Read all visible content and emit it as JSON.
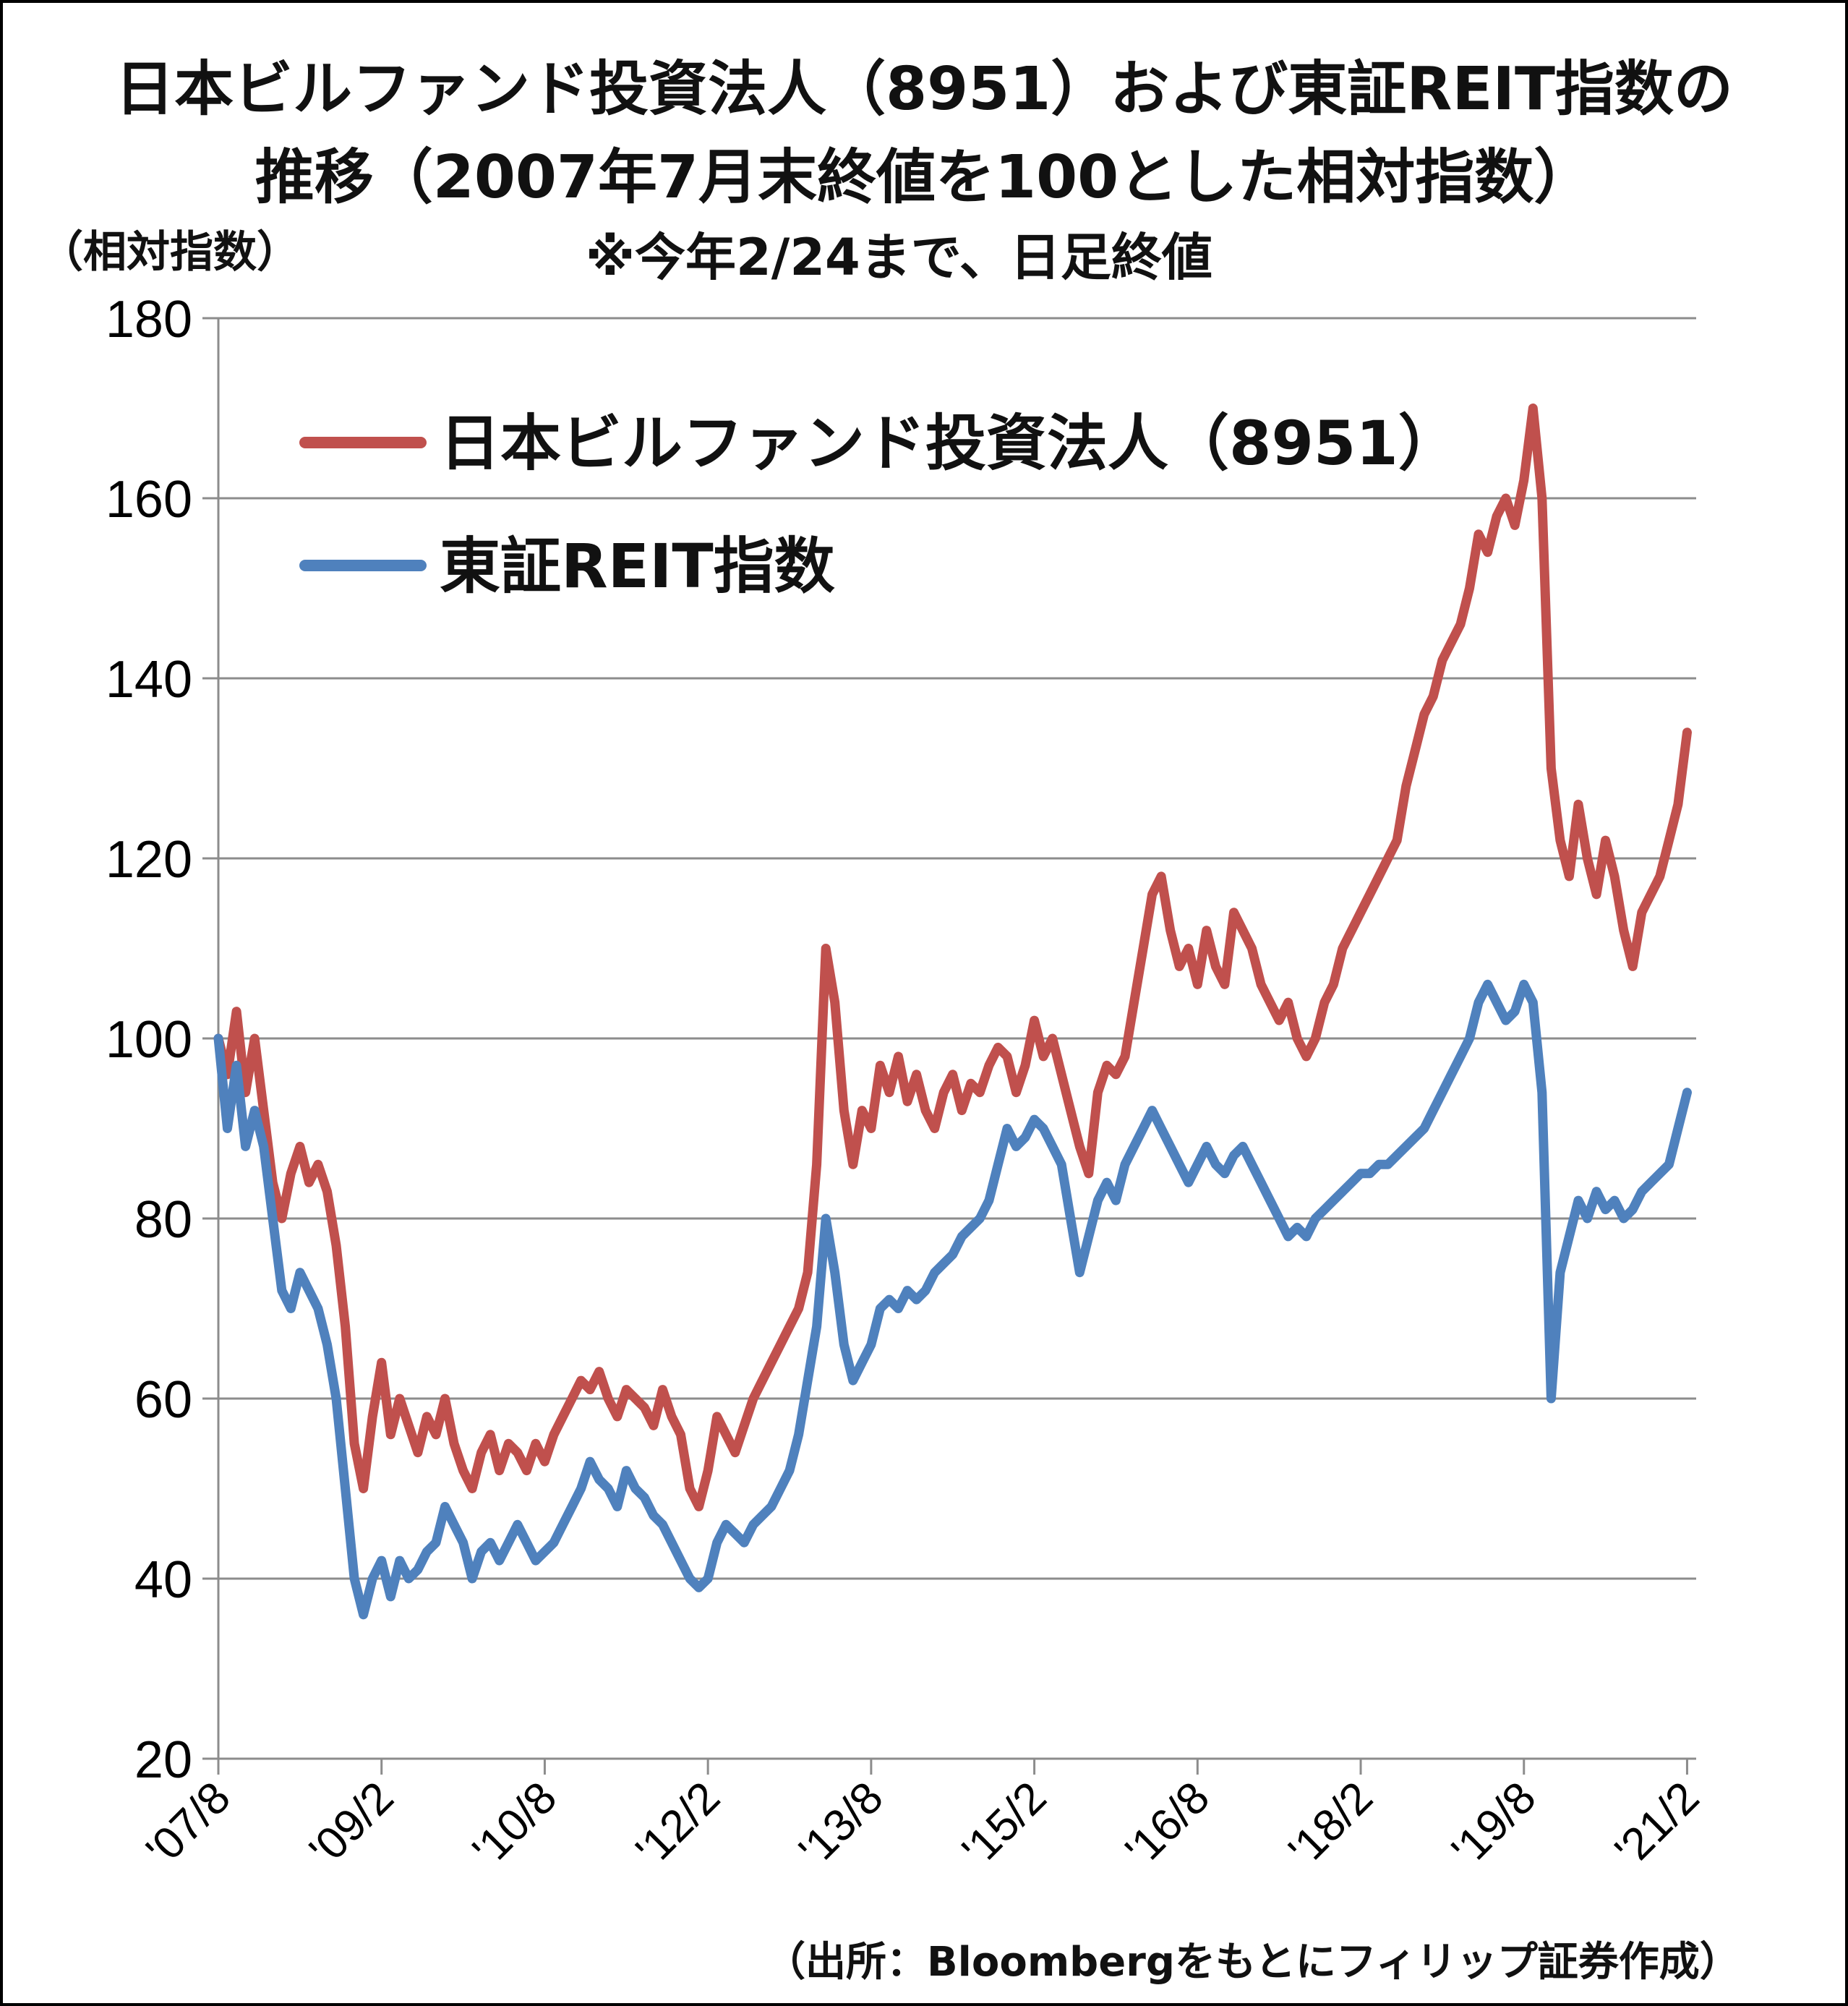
{
  "title_line1": "日本ビルファンド投資法人（8951）および東証REIT指数の",
  "title_line2": "推移（2007年7月末終値を100とした相対指数）",
  "note": "※今年2/24まで、日足終値",
  "y_unit": "（相対指数）",
  "source": "（出所：Bloombergをもとにフィリップ証券作成）",
  "chart_data": {
    "type": "line",
    "ylim": [
      20,
      180
    ],
    "yticks": [
      20,
      40,
      60,
      80,
      100,
      120,
      140,
      160,
      180
    ],
    "xlim": [
      0,
      163
    ],
    "xticks": [
      {
        "label": "'07/8",
        "x": 0
      },
      {
        "label": "'09/2",
        "x": 18
      },
      {
        "label": "'10/8",
        "x": 36
      },
      {
        "label": "'12/2",
        "x": 54
      },
      {
        "label": "'13/8",
        "x": 72
      },
      {
        "label": "'15/2",
        "x": 90
      },
      {
        "label": "'16/8",
        "x": 108
      },
      {
        "label": "'18/2",
        "x": 126
      },
      {
        "label": "'19/8",
        "x": 144
      },
      {
        "label": "'21/2",
        "x": 162
      }
    ],
    "grid": true,
    "legend_position": "top-left",
    "series": [
      {
        "name": "日本ビルファンド投資法人（8951）",
        "color": "#C0504D",
        "points": [
          [
            0,
            100
          ],
          [
            1,
            96
          ],
          [
            2,
            103
          ],
          [
            3,
            94
          ],
          [
            4,
            100
          ],
          [
            5,
            92
          ],
          [
            6,
            84
          ],
          [
            7,
            80
          ],
          [
            8,
            85
          ],
          [
            9,
            88
          ],
          [
            10,
            84
          ],
          [
            11,
            86
          ],
          [
            12,
            83
          ],
          [
            13,
            77
          ],
          [
            14,
            68
          ],
          [
            15,
            55
          ],
          [
            16,
            50
          ],
          [
            17,
            58
          ],
          [
            18,
            64
          ],
          [
            19,
            56
          ],
          [
            20,
            60
          ],
          [
            21,
            57
          ],
          [
            22,
            54
          ],
          [
            23,
            58
          ],
          [
            24,
            56
          ],
          [
            25,
            60
          ],
          [
            26,
            55
          ],
          [
            27,
            52
          ],
          [
            28,
            50
          ],
          [
            29,
            54
          ],
          [
            30,
            56
          ],
          [
            31,
            52
          ],
          [
            32,
            55
          ],
          [
            33,
            54
          ],
          [
            34,
            52
          ],
          [
            35,
            55
          ],
          [
            36,
            53
          ],
          [
            37,
            56
          ],
          [
            38,
            58
          ],
          [
            39,
            60
          ],
          [
            40,
            62
          ],
          [
            41,
            61
          ],
          [
            42,
            63
          ],
          [
            43,
            60
          ],
          [
            44,
            58
          ],
          [
            45,
            61
          ],
          [
            46,
            60
          ],
          [
            47,
            59
          ],
          [
            48,
            57
          ],
          [
            49,
            61
          ],
          [
            50,
            58
          ],
          [
            51,
            56
          ],
          [
            52,
            50
          ],
          [
            53,
            48
          ],
          [
            54,
            52
          ],
          [
            55,
            58
          ],
          [
            56,
            56
          ],
          [
            57,
            54
          ],
          [
            58,
            57
          ],
          [
            59,
            60
          ],
          [
            60,
            62
          ],
          [
            61,
            64
          ],
          [
            62,
            66
          ],
          [
            63,
            68
          ],
          [
            64,
            70
          ],
          [
            65,
            74
          ],
          [
            66,
            86
          ],
          [
            67,
            110
          ],
          [
            68,
            104
          ],
          [
            69,
            92
          ],
          [
            70,
            86
          ],
          [
            71,
            92
          ],
          [
            72,
            90
          ],
          [
            73,
            97
          ],
          [
            74,
            94
          ],
          [
            75,
            98
          ],
          [
            76,
            93
          ],
          [
            77,
            96
          ],
          [
            78,
            92
          ],
          [
            79,
            90
          ],
          [
            80,
            94
          ],
          [
            81,
            96
          ],
          [
            82,
            92
          ],
          [
            83,
            95
          ],
          [
            84,
            94
          ],
          [
            85,
            97
          ],
          [
            86,
            99
          ],
          [
            87,
            98
          ],
          [
            88,
            94
          ],
          [
            89,
            97
          ],
          [
            90,
            102
          ],
          [
            91,
            98
          ],
          [
            92,
            100
          ],
          [
            93,
            96
          ],
          [
            94,
            92
          ],
          [
            95,
            88
          ],
          [
            96,
            85
          ],
          [
            97,
            94
          ],
          [
            98,
            97
          ],
          [
            99,
            96
          ],
          [
            100,
            98
          ],
          [
            101,
            104
          ],
          [
            102,
            110
          ],
          [
            103,
            116
          ],
          [
            104,
            118
          ],
          [
            105,
            112
          ],
          [
            106,
            108
          ],
          [
            107,
            110
          ],
          [
            108,
            106
          ],
          [
            109,
            112
          ],
          [
            110,
            108
          ],
          [
            111,
            106
          ],
          [
            112,
            114
          ],
          [
            113,
            112
          ],
          [
            114,
            110
          ],
          [
            115,
            106
          ],
          [
            116,
            104
          ],
          [
            117,
            102
          ],
          [
            118,
            104
          ],
          [
            119,
            100
          ],
          [
            120,
            98
          ],
          [
            121,
            100
          ],
          [
            122,
            104
          ],
          [
            123,
            106
          ],
          [
            124,
            110
          ],
          [
            125,
            112
          ],
          [
            126,
            114
          ],
          [
            127,
            116
          ],
          [
            128,
            118
          ],
          [
            129,
            120
          ],
          [
            130,
            122
          ],
          [
            131,
            128
          ],
          [
            132,
            132
          ],
          [
            133,
            136
          ],
          [
            134,
            138
          ],
          [
            135,
            142
          ],
          [
            136,
            144
          ],
          [
            137,
            146
          ],
          [
            138,
            150
          ],
          [
            139,
            156
          ],
          [
            140,
            154
          ],
          [
            141,
            158
          ],
          [
            142,
            160
          ],
          [
            143,
            157
          ],
          [
            144,
            162
          ],
          [
            145,
            170
          ],
          [
            146,
            160
          ],
          [
            147,
            130
          ],
          [
            148,
            122
          ],
          [
            149,
            118
          ],
          [
            150,
            126
          ],
          [
            151,
            120
          ],
          [
            152,
            116
          ],
          [
            153,
            122
          ],
          [
            154,
            118
          ],
          [
            155,
            112
          ],
          [
            156,
            108
          ],
          [
            157,
            114
          ],
          [
            158,
            116
          ],
          [
            159,
            118
          ],
          [
            160,
            122
          ],
          [
            161,
            126
          ],
          [
            162,
            134
          ]
        ]
      },
      {
        "name": "東証REIT指数",
        "color": "#4F81BD",
        "points": [
          [
            0,
            100
          ],
          [
            1,
            90
          ],
          [
            2,
            97
          ],
          [
            3,
            88
          ],
          [
            4,
            92
          ],
          [
            5,
            88
          ],
          [
            6,
            80
          ],
          [
            7,
            72
          ],
          [
            8,
            70
          ],
          [
            9,
            74
          ],
          [
            10,
            72
          ],
          [
            11,
            70
          ],
          [
            12,
            66
          ],
          [
            13,
            60
          ],
          [
            14,
            50
          ],
          [
            15,
            40
          ],
          [
            16,
            36
          ],
          [
            17,
            40
          ],
          [
            18,
            42
          ],
          [
            19,
            38
          ],
          [
            20,
            42
          ],
          [
            21,
            40
          ],
          [
            22,
            41
          ],
          [
            23,
            43
          ],
          [
            24,
            44
          ],
          [
            25,
            48
          ],
          [
            26,
            46
          ],
          [
            27,
            44
          ],
          [
            28,
            40
          ],
          [
            29,
            43
          ],
          [
            30,
            44
          ],
          [
            31,
            42
          ],
          [
            32,
            44
          ],
          [
            33,
            46
          ],
          [
            34,
            44
          ],
          [
            35,
            42
          ],
          [
            36,
            43
          ],
          [
            37,
            44
          ],
          [
            38,
            46
          ],
          [
            39,
            48
          ],
          [
            40,
            50
          ],
          [
            41,
            53
          ],
          [
            42,
            51
          ],
          [
            43,
            50
          ],
          [
            44,
            48
          ],
          [
            45,
            52
          ],
          [
            46,
            50
          ],
          [
            47,
            49
          ],
          [
            48,
            47
          ],
          [
            49,
            46
          ],
          [
            50,
            44
          ],
          [
            51,
            42
          ],
          [
            52,
            40
          ],
          [
            53,
            39
          ],
          [
            54,
            40
          ],
          [
            55,
            44
          ],
          [
            56,
            46
          ],
          [
            57,
            45
          ],
          [
            58,
            44
          ],
          [
            59,
            46
          ],
          [
            60,
            47
          ],
          [
            61,
            48
          ],
          [
            62,
            50
          ],
          [
            63,
            52
          ],
          [
            64,
            56
          ],
          [
            65,
            62
          ],
          [
            66,
            68
          ],
          [
            67,
            80
          ],
          [
            68,
            74
          ],
          [
            69,
            66
          ],
          [
            70,
            62
          ],
          [
            71,
            64
          ],
          [
            72,
            66
          ],
          [
            73,
            70
          ],
          [
            74,
            71
          ],
          [
            75,
            70
          ],
          [
            76,
            72
          ],
          [
            77,
            71
          ],
          [
            78,
            72
          ],
          [
            79,
            74
          ],
          [
            80,
            75
          ],
          [
            81,
            76
          ],
          [
            82,
            78
          ],
          [
            83,
            79
          ],
          [
            84,
            80
          ],
          [
            85,
            82
          ],
          [
            86,
            86
          ],
          [
            87,
            90
          ],
          [
            88,
            88
          ],
          [
            89,
            89
          ],
          [
            90,
            91
          ],
          [
            91,
            90
          ],
          [
            92,
            88
          ],
          [
            93,
            86
          ],
          [
            94,
            80
          ],
          [
            95,
            74
          ],
          [
            96,
            78
          ],
          [
            97,
            82
          ],
          [
            98,
            84
          ],
          [
            99,
            82
          ],
          [
            100,
            86
          ],
          [
            101,
            88
          ],
          [
            102,
            90
          ],
          [
            103,
            92
          ],
          [
            104,
            90
          ],
          [
            105,
            88
          ],
          [
            106,
            86
          ],
          [
            107,
            84
          ],
          [
            108,
            86
          ],
          [
            109,
            88
          ],
          [
            110,
            86
          ],
          [
            111,
            85
          ],
          [
            112,
            87
          ],
          [
            113,
            88
          ],
          [
            114,
            86
          ],
          [
            115,
            84
          ],
          [
            116,
            82
          ],
          [
            117,
            80
          ],
          [
            118,
            78
          ],
          [
            119,
            79
          ],
          [
            120,
            78
          ],
          [
            121,
            80
          ],
          [
            122,
            81
          ],
          [
            123,
            82
          ],
          [
            124,
            83
          ],
          [
            125,
            84
          ],
          [
            126,
            85
          ],
          [
            127,
            85
          ],
          [
            128,
            86
          ],
          [
            129,
            86
          ],
          [
            130,
            87
          ],
          [
            131,
            88
          ],
          [
            132,
            89
          ],
          [
            133,
            90
          ],
          [
            134,
            92
          ],
          [
            135,
            94
          ],
          [
            136,
            96
          ],
          [
            137,
            98
          ],
          [
            138,
            100
          ],
          [
            139,
            104
          ],
          [
            140,
            106
          ],
          [
            141,
            104
          ],
          [
            142,
            102
          ],
          [
            143,
            103
          ],
          [
            144,
            106
          ],
          [
            145,
            104
          ],
          [
            146,
            94
          ],
          [
            147,
            60
          ],
          [
            148,
            74
          ],
          [
            149,
            78
          ],
          [
            150,
            82
          ],
          [
            151,
            80
          ],
          [
            152,
            83
          ],
          [
            153,
            81
          ],
          [
            154,
            82
          ],
          [
            155,
            80
          ],
          [
            156,
            81
          ],
          [
            157,
            83
          ],
          [
            158,
            84
          ],
          [
            159,
            85
          ],
          [
            160,
            86
          ],
          [
            161,
            90
          ],
          [
            162,
            94
          ]
        ]
      }
    ]
  }
}
